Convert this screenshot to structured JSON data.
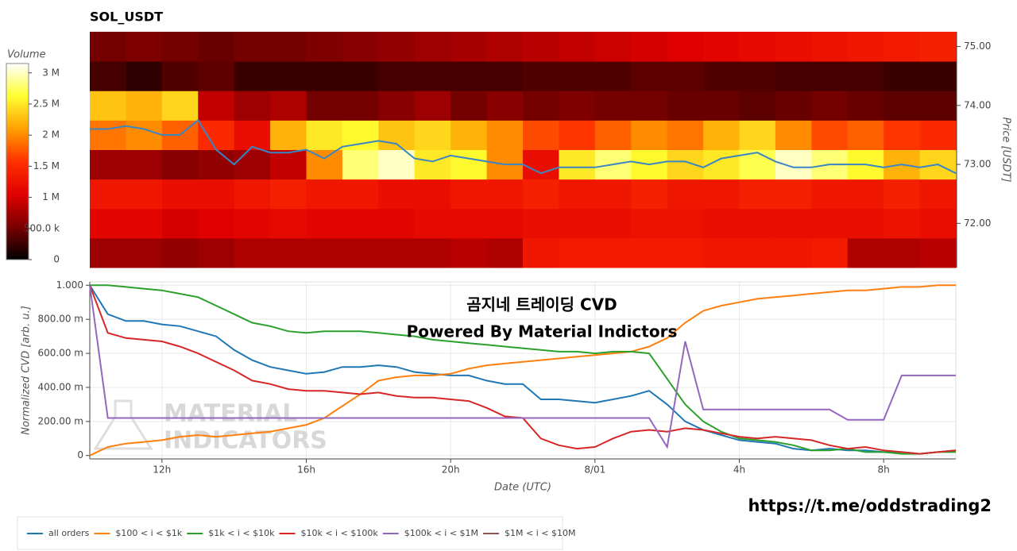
{
  "chart_data": [
    {
      "type": "heatmap",
      "title": "SOL_USDT",
      "y_label": "Price [USDT]",
      "colorbar_title": "Volume",
      "xlim": [
        10,
        34
      ],
      "ylim": [
        71.25,
        75.25
      ],
      "yticks": [
        {
          "value": 72,
          "label": "72.00"
        },
        {
          "value": 73,
          "label": "73.00"
        },
        {
          "value": 74,
          "label": "74.00"
        },
        {
          "value": 75,
          "label": "75.00"
        }
      ],
      "zlim": [
        0,
        3150000
      ],
      "zticks": [
        0,
        {
          "value": 500000,
          "label": "500.0 k"
        },
        {
          "value": 1000000,
          "label": "1 M"
        },
        {
          "value": 1500000,
          "label": "1.5 M"
        },
        {
          "value": 2000000,
          "label": "2 M"
        },
        {
          "value": 2500000,
          "label": "2.5 M"
        },
        {
          "value": 3000000,
          "label": "3 M"
        }
      ],
      "colorscale": [
        "#000000",
        "#7a0000",
        "#e00000",
        "#ff3000",
        "#ffa000",
        "#ffff30",
        "#ffffff"
      ],
      "xbins": [
        10,
        11,
        12,
        13,
        14,
        15,
        16,
        17,
        18,
        19,
        20,
        21,
        22,
        23,
        24,
        25,
        26,
        27,
        28,
        29,
        30,
        31,
        32,
        33,
        34
      ],
      "ybins": [
        71.25,
        71.75,
        72.25,
        72.75,
        73.25,
        73.75,
        74.25,
        74.75,
        75.25
      ],
      "z": [
        [
          700000,
          700000,
          650000,
          700000,
          800000,
          800000,
          800000,
          800000,
          800000,
          800000,
          850000,
          800000,
          1300000,
          1350000,
          1350000,
          1350000,
          1350000,
          1300000,
          1300000,
          1300000,
          1350000,
          800000,
          800000,
          850000
        ],
        [
          1100000,
          1100000,
          1000000,
          1050000,
          1100000,
          1150000,
          1100000,
          1100000,
          1100000,
          1150000,
          1150000,
          1150000,
          1200000,
          1200000,
          1200000,
          1250000,
          1250000,
          1200000,
          1200000,
          1200000,
          1200000,
          1200000,
          1250000,
          1200000
        ],
        [
          1300000,
          1300000,
          1200000,
          1200000,
          1300000,
          1400000,
          1300000,
          1300000,
          1200000,
          1200000,
          1300000,
          1300000,
          1400000,
          1300000,
          1300000,
          1400000,
          1300000,
          1300000,
          1400000,
          1400000,
          1300000,
          1300000,
          1400000,
          1300000
        ],
        [
          700000,
          700000,
          600000,
          650000,
          700000,
          900000,
          2000000,
          2800000,
          3000000,
          2500000,
          2600000,
          2000000,
          1200000,
          2500000,
          2800000,
          2600000,
          2400000,
          2500000,
          2700000,
          3000000,
          2800000,
          2600000,
          2200000,
          2400000
        ],
        [
          1900000,
          2000000,
          1800000,
          1500000,
          1200000,
          2200000,
          2500000,
          2600000,
          2300000,
          2400000,
          2200000,
          2000000,
          1700000,
          1600000,
          1800000,
          2000000,
          1900000,
          2200000,
          2400000,
          2000000,
          1700000,
          1800000,
          1600000,
          1500000
        ],
        [
          2300000,
          2200000,
          2400000,
          900000,
          700000,
          800000,
          500000,
          500000,
          600000,
          700000,
          500000,
          600000,
          500000,
          550000,
          500000,
          500000,
          450000,
          450000,
          400000,
          450000,
          500000,
          450000,
          400000,
          400000
        ],
        [
          300000,
          200000,
          350000,
          400000,
          250000,
          250000,
          250000,
          250000,
          300000,
          300000,
          300000,
          300000,
          350000,
          350000,
          350000,
          400000,
          400000,
          350000,
          350000,
          300000,
          300000,
          300000,
          250000,
          250000
        ],
        [
          500000,
          550000,
          500000,
          450000,
          500000,
          500000,
          550000,
          600000,
          650000,
          700000,
          750000,
          800000,
          850000,
          900000,
          950000,
          1000000,
          1050000,
          1100000,
          1150000,
          1200000,
          1250000,
          1300000,
          1350000,
          1400000
        ]
      ],
      "line_color": "#3a86c4",
      "x": [
        10,
        10.5,
        11,
        11.5,
        12,
        12.5,
        13,
        13.5,
        14,
        14.5,
        15,
        15.5,
        16,
        16.5,
        17,
        17.5,
        18,
        18.5,
        19,
        19.5,
        20,
        20.5,
        21,
        21.5,
        22,
        22.5,
        23,
        23.5,
        24,
        24.5,
        25,
        25.5,
        26,
        26.5,
        27,
        27.5,
        28,
        28.5,
        29,
        29.5,
        30,
        30.5,
        31,
        31.5,
        32,
        32.5,
        33,
        33.5,
        34
      ],
      "values": [
        73.6,
        73.6,
        73.65,
        73.6,
        73.5,
        73.5,
        73.75,
        73.25,
        73.0,
        73.3,
        73.2,
        73.2,
        73.25,
        73.1,
        73.3,
        73.35,
        73.4,
        73.35,
        73.1,
        73.05,
        73.15,
        73.1,
        73.05,
        73.0,
        73.0,
        72.85,
        72.95,
        72.95,
        72.95,
        73.0,
        73.05,
        73.0,
        73.05,
        73.05,
        72.95,
        73.1,
        73.15,
        73.2,
        73.05,
        72.95,
        72.95,
        73.0,
        73.0,
        73.0,
        72.95,
        73.0,
        72.95,
        73.0,
        72.85
      ]
    },
    {
      "type": "line",
      "x_label": "Date (UTC)",
      "y_label": "Normalized CVD [arb. u.]",
      "grid": true,
      "legend": "bottom",
      "annotations": [
        "곰지네 트레이딩 CVD",
        "Powered By Material Indictors"
      ],
      "watermark": [
        "MATERIAL",
        "INDICATORS"
      ],
      "footer": "https://t.me/oddstrading2",
      "xlim": [
        10,
        34
      ],
      "ylim": [
        -0.02,
        1.02
      ],
      "xticks": [
        {
          "value": 12,
          "label": "12h"
        },
        {
          "value": 16,
          "label": "16h"
        },
        {
          "value": 20,
          "label": "20h"
        },
        {
          "value": 24,
          "label": "8/01"
        },
        {
          "value": 28,
          "label": "4h"
        },
        {
          "value": 32,
          "label": "8h"
        }
      ],
      "yticks": [
        0,
        {
          "value": 0.2,
          "label": "200.00 m"
        },
        {
          "value": 0.4,
          "label": "400.00 m"
        },
        {
          "value": 0.6,
          "label": "600.00 m"
        },
        {
          "value": 0.8,
          "label": "800.00 m"
        },
        {
          "value": 1,
          "label": "1.000"
        }
      ],
      "x": [
        10,
        10.5,
        11,
        11.5,
        12,
        12.5,
        13,
        13.5,
        14,
        14.5,
        15,
        15.5,
        16,
        16.5,
        17,
        17.5,
        18,
        18.5,
        19,
        19.5,
        20,
        20.5,
        21,
        21.5,
        22,
        22.5,
        23,
        23.5,
        24,
        24.5,
        25,
        25.5,
        26,
        26.5,
        27,
        27.5,
        28,
        28.5,
        29,
        29.5,
        30,
        30.5,
        31,
        31.5,
        32,
        32.5,
        33,
        33.5,
        34
      ],
      "series": [
        {
          "name": "all orders",
          "color": "#1f77b4",
          "values": [
            1.0,
            0.83,
            0.79,
            0.79,
            0.77,
            0.76,
            0.73,
            0.7,
            0.62,
            0.56,
            0.52,
            0.5,
            0.48,
            0.49,
            0.52,
            0.52,
            0.53,
            0.52,
            0.49,
            0.48,
            0.47,
            0.47,
            0.44,
            0.42,
            0.42,
            0.33,
            0.33,
            0.32,
            0.31,
            0.33,
            0.35,
            0.38,
            0.3,
            0.2,
            0.15,
            0.12,
            0.09,
            0.08,
            0.07,
            0.04,
            0.03,
            0.04,
            0.03,
            0.03,
            0.02,
            0.02,
            0.01,
            0.02,
            0.03
          ]
        },
        {
          "name": "$100 < i < $1k",
          "color": "#ff7f0e",
          "values": [
            0.0,
            0.05,
            0.07,
            0.08,
            0.09,
            0.11,
            0.12,
            0.11,
            0.12,
            0.13,
            0.14,
            0.16,
            0.18,
            0.22,
            0.29,
            0.36,
            0.44,
            0.46,
            0.47,
            0.47,
            0.48,
            0.51,
            0.53,
            0.54,
            0.55,
            0.56,
            0.57,
            0.58,
            0.59,
            0.6,
            0.61,
            0.64,
            0.69,
            0.78,
            0.85,
            0.88,
            0.9,
            0.92,
            0.93,
            0.94,
            0.95,
            0.96,
            0.97,
            0.97,
            0.98,
            0.99,
            0.99,
            1.0,
            1.0
          ]
        },
        {
          "name": "$1k < i < $10k",
          "color": "#2ca02c",
          "values": [
            1.0,
            1.0,
            0.99,
            0.98,
            0.97,
            0.95,
            0.93,
            0.88,
            0.83,
            0.78,
            0.76,
            0.73,
            0.72,
            0.73,
            0.73,
            0.73,
            0.72,
            0.71,
            0.7,
            0.68,
            0.67,
            0.66,
            0.65,
            0.64,
            0.63,
            0.62,
            0.61,
            0.61,
            0.6,
            0.61,
            0.61,
            0.6,
            0.45,
            0.3,
            0.2,
            0.14,
            0.1,
            0.09,
            0.08,
            0.06,
            0.03,
            0.03,
            0.04,
            0.02,
            0.02,
            0.01,
            0.01,
            0.02,
            0.02
          ]
        },
        {
          "name": "$10k < i < $100k",
          "color": "#d62728",
          "values": [
            1.0,
            0.72,
            0.69,
            0.68,
            0.67,
            0.64,
            0.6,
            0.55,
            0.5,
            0.44,
            0.42,
            0.39,
            0.38,
            0.38,
            0.37,
            0.36,
            0.37,
            0.35,
            0.34,
            0.34,
            0.33,
            0.32,
            0.28,
            0.23,
            0.22,
            0.1,
            0.06,
            0.04,
            0.05,
            0.1,
            0.14,
            0.15,
            0.14,
            0.16,
            0.15,
            0.13,
            0.11,
            0.1,
            0.11,
            0.1,
            0.09,
            0.06,
            0.04,
            0.05,
            0.03,
            0.02,
            0.01,
            0.02,
            0.03
          ]
        },
        {
          "name": "$100k < i < $1M",
          "color": "#9467bd",
          "values": [
            1.0,
            0.22,
            0.22,
            0.22,
            0.22,
            0.22,
            0.22,
            0.22,
            0.22,
            0.22,
            0.22,
            0.22,
            0.22,
            0.22,
            0.22,
            0.22,
            0.22,
            0.22,
            0.22,
            0.22,
            0.22,
            0.22,
            0.22,
            0.22,
            0.22,
            0.22,
            0.22,
            0.22,
            0.22,
            0.22,
            0.22,
            0.22,
            0.05,
            0.67,
            0.27,
            0.27,
            0.27,
            0.27,
            0.27,
            0.27,
            0.27,
            0.27,
            0.21,
            0.21,
            0.21,
            0.47,
            0.47,
            0.47,
            0.47
          ]
        },
        {
          "name": "$1M < i < $10M",
          "color": "#8c564b",
          "values": [
            null,
            null,
            null,
            null,
            null,
            null,
            null,
            null,
            null,
            null,
            null,
            null,
            null,
            null,
            null,
            null,
            null,
            null,
            null,
            null,
            null,
            null,
            null,
            null,
            null,
            null,
            null,
            null,
            null,
            null,
            null,
            null,
            null,
            null,
            null,
            null,
            null,
            null,
            null,
            null,
            null,
            null,
            null,
            null,
            null,
            null,
            null,
            null,
            null
          ]
        }
      ]
    }
  ]
}
